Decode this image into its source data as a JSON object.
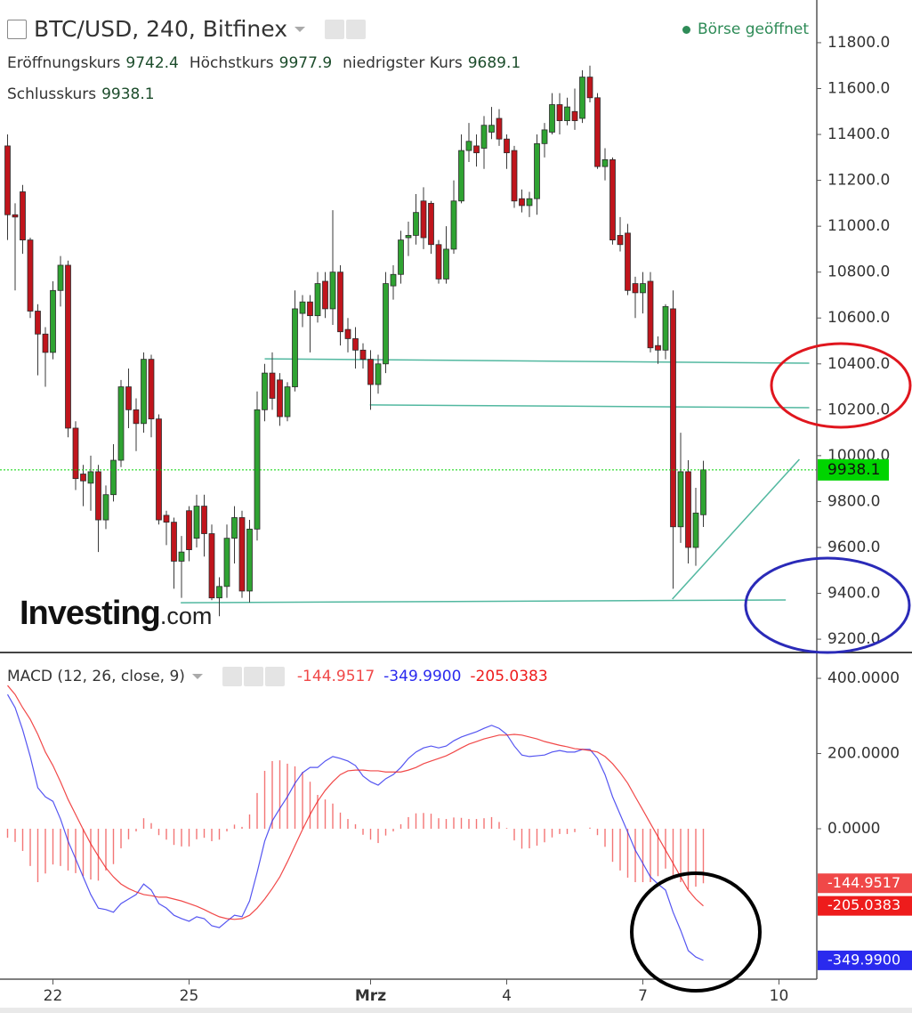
{
  "chart_data": [
    {
      "type": "candlestick",
      "title": "BTC/USD, 240, Bitfinex",
      "status": "Börse geöffnet",
      "watermark": {
        "brand": "Investing",
        "suffix": ".com"
      },
      "ohlc_labels": [
        "Eröffnungskurs",
        "Höchstkurs",
        "niedrigster Kurs",
        "Schlusskurs"
      ],
      "up_color": "#2fa332",
      "down_color": "#c0151c",
      "open": [
        11350,
        11050,
        11150,
        10940,
        10630,
        10530,
        10450,
        10720,
        10830,
        10120,
        9920,
        9880,
        9930,
        9720,
        9830,
        9980,
        10300,
        10200,
        10140,
        10420,
        10160,
        9740,
        9710,
        9540,
        9760,
        9640,
        9780,
        9660,
        9380,
        9430,
        9640,
        9730,
        9410,
        9680,
        10200,
        10360,
        10330,
        10170,
        10300,
        10620,
        10670,
        10610,
        10760,
        10640,
        10800,
        10550,
        10510,
        10460,
        10420,
        10310,
        10400,
        10740,
        10790,
        10950,
        10960,
        11110,
        11100,
        10920,
        10770,
        10900,
        11110,
        11330,
        11350,
        11340,
        11410,
        11470,
        11380,
        11330,
        11120,
        11090,
        11120,
        11360,
        11410,
        11530,
        11460,
        11500,
        11470,
        11650,
        11560,
        11260,
        11290,
        10960,
        10970,
        10750,
        10710,
        10760,
        10480,
        10460,
        10640,
        9690,
        9930,
        9600,
        9742.4
      ],
      "high": [
        11400,
        11100,
        11180,
        10950,
        10660,
        10560,
        10760,
        10870,
        10850,
        10150,
        9960,
        10000,
        9960,
        9870,
        10050,
        10330,
        10380,
        10250,
        10450,
        10440,
        10180,
        9760,
        9730,
        9650,
        9780,
        9830,
        9830,
        9700,
        9470,
        9700,
        9780,
        9760,
        9720,
        10280,
        10400,
        10450,
        10360,
        10320,
        10720,
        10700,
        10700,
        10800,
        10800,
        11070,
        10830,
        10600,
        10560,
        10490,
        10460,
        10440,
        10800,
        10830,
        10980,
        11020,
        11140,
        11170,
        11110,
        10940,
        11000,
        11200,
        11400,
        11450,
        11400,
        11480,
        11520,
        11510,
        11400,
        11350,
        11160,
        11150,
        11400,
        11450,
        11580,
        11580,
        11560,
        11600,
        11680,
        11700,
        11580,
        11340,
        11300,
        11040,
        11010,
        10780,
        10800,
        10800,
        10520,
        10660,
        10720,
        10100,
        9980,
        9860,
        9977.9
      ],
      "low": [
        10940,
        10720,
        10880,
        10600,
        10350,
        10300,
        10420,
        10650,
        10080,
        9850,
        9780,
        9760,
        9580,
        9680,
        9800,
        9950,
        10120,
        10020,
        10100,
        10080,
        9700,
        9610,
        9420,
        9380,
        9540,
        9600,
        9560,
        9370,
        9300,
        9380,
        9530,
        9380,
        9360,
        9630,
        10150,
        10200,
        10130,
        10150,
        10280,
        10560,
        10450,
        10580,
        10600,
        10570,
        10480,
        10450,
        10380,
        10380,
        10200,
        10270,
        10360,
        10680,
        10750,
        10870,
        10920,
        10900,
        10880,
        10750,
        10750,
        10880,
        11100,
        11280,
        11260,
        11250,
        11380,
        11350,
        11250,
        11080,
        11060,
        11040,
        11050,
        11300,
        11400,
        11400,
        11440,
        11420,
        11450,
        11540,
        11250,
        11200,
        10920,
        10890,
        10700,
        10600,
        10620,
        10450,
        10400,
        10420,
        9420,
        9620,
        9530,
        9520,
        9689.1
      ],
      "close": [
        11050,
        11040,
        10940,
        10630,
        10530,
        10450,
        10720,
        10830,
        10120,
        9900,
        9890,
        9930,
        9720,
        9830,
        9980,
        10300,
        10200,
        10140,
        10420,
        10160,
        9720,
        9710,
        9540,
        9580,
        9590,
        9780,
        9660,
        9380,
        9430,
        9640,
        9730,
        9410,
        9680,
        10200,
        10360,
        10250,
        10170,
        10300,
        10640,
        10670,
        10610,
        10750,
        10640,
        10800,
        10540,
        10510,
        10460,
        10420,
        10310,
        10400,
        10750,
        10790,
        10940,
        10960,
        11060,
        10950,
        10920,
        10770,
        10900,
        11110,
        11330,
        11370,
        11320,
        11440,
        11440,
        11380,
        11320,
        11110,
        11090,
        11120,
        11360,
        11420,
        11530,
        11460,
        11520,
        11460,
        11650,
        11560,
        11260,
        11290,
        10940,
        10920,
        10720,
        10710,
        10750,
        10470,
        10460,
        10650,
        9690,
        9930,
        9600,
        9750,
        9938.1
      ],
      "last_price_color": "#00d400",
      "drawings_color": "#52b8a0",
      "drawings": [
        {
          "x": [
            34,
            106
          ],
          "y": [
            10422,
            10403
          ]
        },
        {
          "x": [
            47.9,
            106
          ],
          "y": [
            10221,
            10209
          ]
        },
        {
          "x": [
            22.9,
            102.9
          ],
          "y": [
            9359,
            9371
          ]
        },
        {
          "x": [
            87.9,
            104.7
          ],
          "y": [
            9375,
            9984
          ]
        }
      ],
      "xlim": [
        -1,
        107
      ],
      "xticks": [
        {
          "value": 6,
          "label": "22"
        },
        {
          "value": 24,
          "label": "25"
        },
        {
          "value": 48,
          "label": "Mrz"
        },
        {
          "value": 66,
          "label": "4"
        },
        {
          "value": 84,
          "label": "7"
        },
        {
          "value": 102,
          "label": "10"
        }
      ],
      "ylim": [
        9146,
        11986
      ],
      "yticks": [
        {
          "value": 9200,
          "label": "9200.0"
        },
        {
          "value": 9400,
          "label": "9400.0"
        },
        {
          "value": 9600,
          "label": "9600.0"
        },
        {
          "value": 9800,
          "label": "9800.0"
        },
        {
          "value": 10000,
          "label": "10000.0"
        },
        {
          "value": 10200,
          "label": "10200.0"
        },
        {
          "value": 10400,
          "label": "10400.0"
        },
        {
          "value": 10600,
          "label": "10600.0"
        },
        {
          "value": 10800,
          "label": "10800.0"
        },
        {
          "value": 11000,
          "label": "11000.0"
        },
        {
          "value": 11200,
          "label": "11200.0"
        },
        {
          "value": 11400,
          "label": "11400.0"
        },
        {
          "value": 11600,
          "label": "11600.0"
        },
        {
          "value": 11800,
          "label": "11800.0"
        }
      ],
      "grid": false
    },
    {
      "type": "macd",
      "title": "MACD (12, 26, close, 9)",
      "xlim": [
        -1,
        107
      ],
      "ylim": [
        -400,
        464
      ],
      "yticks": [
        {
          "value": 0,
          "label": "0.0000"
        },
        {
          "value": 200,
          "label": "200.0000"
        },
        {
          "value": 400,
          "label": "400.0000"
        }
      ],
      "series": [
        {
          "type": "histogram",
          "color": "#f04848",
          "values": [
            -24,
            -35,
            -59,
            -99,
            -142,
            -119,
            -95,
            -99,
            -111,
            -118,
            -126,
            -135,
            -138,
            -111,
            -94,
            -52,
            -28,
            -7,
            28,
            15,
            -17,
            -29,
            -43,
            -47,
            -47,
            -28,
            -24,
            -33,
            -29,
            -7,
            11,
            5,
            38,
            95,
            154,
            180,
            182,
            173,
            166,
            151,
            125,
            90,
            78,
            67,
            43,
            26,
            12,
            -16,
            -29,
            -38,
            -18,
            -7,
            12,
            31,
            41,
            42,
            40,
            28,
            26,
            30,
            29,
            26,
            26,
            28,
            31,
            18,
            2,
            -31,
            -53,
            -52,
            -45,
            -36,
            -23,
            -14,
            -14,
            -9,
            0,
            3,
            -17,
            -48,
            -88,
            -111,
            -130,
            -142,
            -142,
            -142,
            -126,
            -106,
            -130,
            -142,
            -161,
            -154,
            -144.9517
          ]
        },
        {
          "type": "line",
          "color": "#2a2aee",
          "values": [
            357,
            322,
            263,
            192,
            109,
            85,
            73,
            26,
            -33,
            -80,
            -128,
            -175,
            -211,
            -215,
            -222,
            -199,
            -187,
            -175,
            -147,
            -163,
            -199,
            -211,
            -230,
            -239,
            -246,
            -234,
            -239,
            -258,
            -263,
            -246,
            -230,
            -234,
            -192,
            -116,
            -33,
            21,
            54,
            85,
            121,
            149,
            163,
            163,
            180,
            192,
            187,
            180,
            168,
            140,
            125,
            116,
            133,
            144,
            163,
            187,
            204,
            215,
            220,
            215,
            220,
            234,
            244,
            251,
            258,
            267,
            275,
            267,
            251,
            220,
            196,
            192,
            194,
            196,
            204,
            208,
            204,
            204,
            211,
            211,
            187,
            144,
            85,
            38,
            -9,
            -57,
            -92,
            -128,
            -147,
            -163,
            -222,
            -270,
            -324,
            -341,
            -349.99
          ],
          "value_labels": [
            null,
            null,
            null,
            null,
            null,
            null,
            null,
            null,
            null,
            null,
            null,
            null,
            null,
            null,
            null,
            null,
            null,
            null,
            null,
            null,
            null,
            null,
            null,
            null,
            null,
            null,
            null,
            null,
            null,
            null,
            null,
            null,
            null,
            null,
            null,
            null,
            null,
            null,
            null,
            null,
            null,
            null,
            null,
            null,
            null,
            null,
            null,
            null,
            null,
            null,
            null,
            null,
            null,
            null,
            null,
            null,
            null,
            null,
            null,
            null,
            null,
            null,
            null,
            null,
            null,
            null,
            null,
            null,
            null,
            null,
            null,
            null,
            null,
            null,
            null,
            null,
            null,
            null,
            null,
            null,
            null,
            null,
            null,
            null,
            null,
            null,
            null,
            null,
            null,
            null,
            null,
            null,
            "-349.9900"
          ]
        },
        {
          "type": "line",
          "color": "#ee1c1c",
          "values": [
            381,
            357,
            322,
            291,
            251,
            204,
            168,
            125,
            78,
            38,
            -2,
            -40,
            -73,
            -104,
            -128,
            -147,
            -159,
            -168,
            -175,
            -178,
            -182,
            -182,
            -187,
            -192,
            -199,
            -206,
            -215,
            -225,
            -234,
            -239,
            -241,
            -239,
            -230,
            -211,
            -187,
            -159,
            -128,
            -88,
            -45,
            -2,
            38,
            73,
            102,
            125,
            144,
            154,
            156,
            156,
            154,
            154,
            151,
            151,
            151,
            156,
            163,
            173,
            180,
            187,
            194,
            204,
            215,
            225,
            232,
            239,
            244,
            249,
            249,
            251,
            249,
            244,
            239,
            232,
            227,
            222,
            218,
            213,
            211,
            208,
            204,
            192,
            173,
            149,
            121,
            85,
            50,
            14,
            -21,
            -57,
            -92,
            -128,
            -163,
            -187,
            -205.0383
          ]
        }
      ],
      "grid": false
    }
  ]
}
